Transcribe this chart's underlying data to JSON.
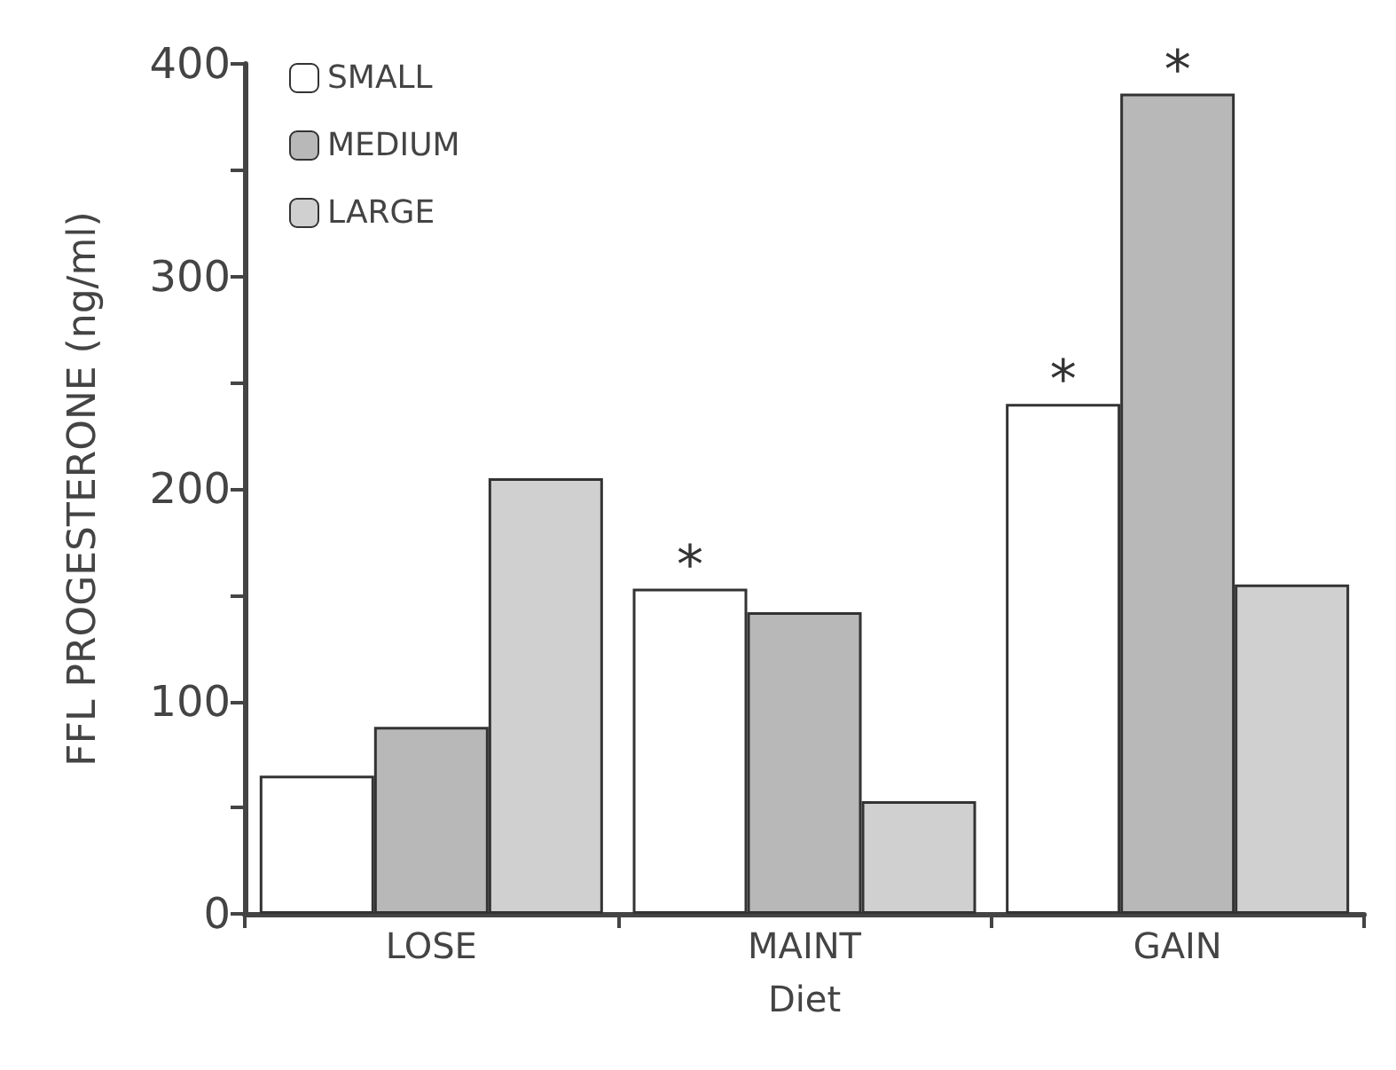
{
  "chart_data": {
    "type": "bar",
    "xlabel": "Diet",
    "ylabel": "FFL PROGESTERONE (ng/ml)",
    "categories": [
      "LOSE",
      "MAINT",
      "GAIN"
    ],
    "series": [
      {
        "name": "SMALL",
        "color": "#ffffff",
        "values": [
          65,
          153,
          240
        ],
        "value_labels": [
          null,
          "*",
          "*"
        ]
      },
      {
        "name": "MEDIUM",
        "color": "#b8b8b8",
        "values": [
          88,
          142,
          386
        ],
        "value_labels": [
          null,
          null,
          "*"
        ]
      },
      {
        "name": "LARGE",
        "color": "#d0d0d0",
        "values": [
          205,
          53,
          155
        ]
      }
    ],
    "ylim": [
      0,
      400
    ],
    "yticks": [
      0,
      {
        "value": 50,
        "label": null
      },
      100,
      {
        "value": 150,
        "label": null
      },
      200,
      {
        "value": 250,
        "label": null
      },
      300,
      {
        "value": 350,
        "label": null
      },
      400
    ],
    "legend": "top left",
    "grid": false
  }
}
